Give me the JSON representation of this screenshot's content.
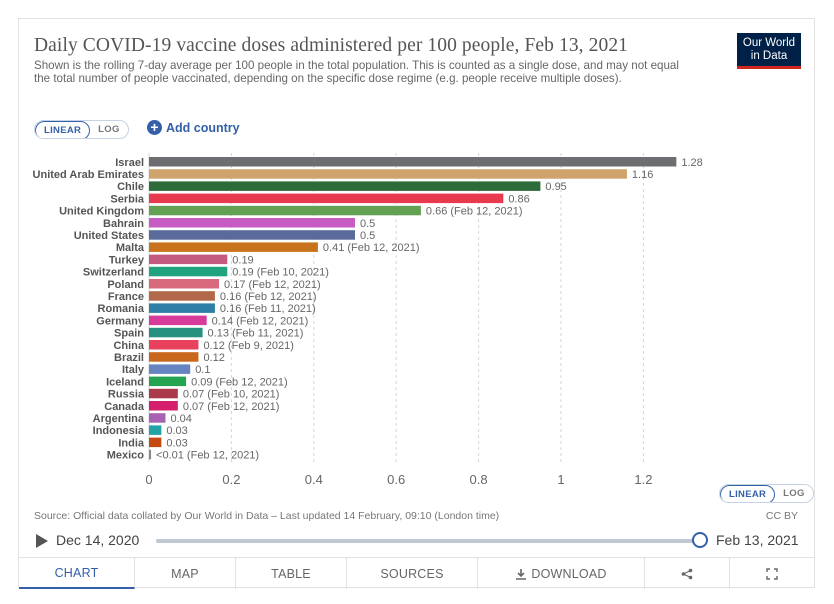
{
  "header": {
    "title": "Daily COVID-19 vaccine doses administered per 100 people, Feb 13, 2021",
    "subtitle": "Shown is the rolling 7-day average per 100 people in the total population. This is counted as a single dose, and may not equal the total number of people vaccinated, depending on the specific dose regime (e.g. people receive multiple doses).",
    "logo_line1": "Our World",
    "logo_line2": "in Data"
  },
  "controls": {
    "linear_label": "LINEAR",
    "log_label": "LOG",
    "add_country_label": "Add country",
    "add_icon": "plus-circle-icon"
  },
  "chart_data": {
    "type": "bar",
    "orientation": "horizontal",
    "categories": [
      "Israel",
      "United Arab Emirates",
      "Chile",
      "Serbia",
      "United Kingdom",
      "Bahrain",
      "United States",
      "Malta",
      "Turkey",
      "Switzerland",
      "Poland",
      "France",
      "Romania",
      "Germany",
      "Spain",
      "China",
      "Brazil",
      "Italy",
      "Iceland",
      "Russia",
      "Canada",
      "Argentina",
      "Indonesia",
      "India",
      "Mexico"
    ],
    "values": [
      1.28,
      1.16,
      0.95,
      0.86,
      0.66,
      0.5,
      0.5,
      0.41,
      0.19,
      0.19,
      0.17,
      0.16,
      0.16,
      0.14,
      0.13,
      0.12,
      0.12,
      0.1,
      0.09,
      0.07,
      0.07,
      0.04,
      0.03,
      0.03,
      0.005
    ],
    "value_labels": [
      "1.28",
      "1.16",
      "0.95",
      "0.86",
      "0.66 (Feb 12, 2021)",
      "0.5",
      "0.5",
      "0.41 (Feb 12, 2021)",
      "0.19",
      "0.19 (Feb 10, 2021)",
      "0.17 (Feb 12, 2021)",
      "0.16 (Feb 12, 2021)",
      "0.16 (Feb 11, 2021)",
      "0.14 (Feb 12, 2021)",
      "0.13 (Feb 11, 2021)",
      "0.12 (Feb 9, 2021)",
      "0.12",
      "0.1",
      "0.09 (Feb 12, 2021)",
      "0.07 (Feb 10, 2021)",
      "0.07 (Feb 12, 2021)",
      "0.04",
      "0.03",
      "0.03",
      "<0.01 (Feb 12, 2021)"
    ],
    "colors": [
      "#6d6e72",
      "#cfa36b",
      "#2e6b3a",
      "#e9394f",
      "#63a052",
      "#c65bc3",
      "#5a6a9a",
      "#c9741c",
      "#c45a7f",
      "#21a37f",
      "#d96a7e",
      "#b1694a",
      "#2d7fa8",
      "#d63b9c",
      "#26917f",
      "#e8415d",
      "#c9681d",
      "#6683c2",
      "#24a350",
      "#aa3a4a",
      "#d31f6c",
      "#a762b4",
      "#22a3a6",
      "#c44a12",
      "#888888"
    ],
    "xlim": [
      0,
      1.3
    ],
    "xticks": [
      "0",
      "0.2",
      "0.4",
      "0.6",
      "0.8",
      "1",
      "1.2"
    ],
    "xtick_values": [
      0,
      0.2,
      0.4,
      0.6,
      0.8,
      1,
      1.2
    ],
    "grid": "vertical dashed"
  },
  "footer": {
    "source": "Source: Official data collated by Our World in Data – Last updated 14 February, 09:10 (London time)",
    "license": "CC BY",
    "timeline_start": "Dec 14, 2020",
    "timeline_end": "Feb 13, 2021",
    "timeline_position": 1.0
  },
  "tabs": [
    {
      "label": "CHART",
      "active": true
    },
    {
      "label": "MAP",
      "active": false
    },
    {
      "label": "TABLE",
      "active": false
    },
    {
      "label": "SOURCES",
      "active": false
    },
    {
      "label": "DOWNLOAD",
      "active": false,
      "icon": "download-icon"
    },
    {
      "label": "",
      "active": false,
      "icon": "share-icon"
    },
    {
      "label": "",
      "active": false,
      "icon": "expand-icon"
    }
  ]
}
